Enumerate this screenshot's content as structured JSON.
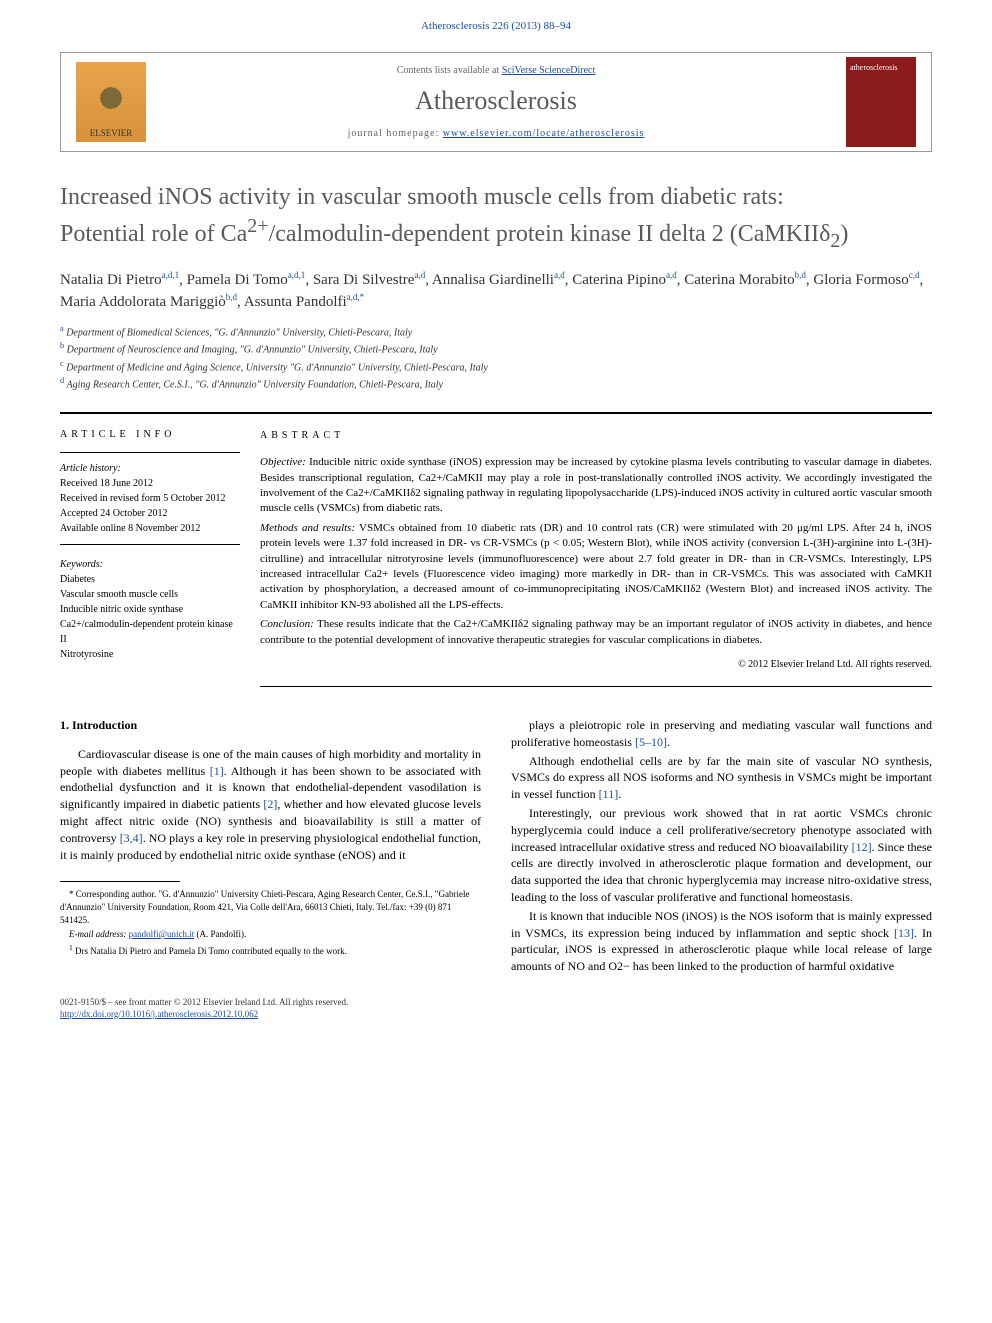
{
  "header": {
    "citation": "Atherosclerosis 226 (2013) 88–94"
  },
  "journal_box": {
    "contents_prefix": "Contents lists available at ",
    "contents_link": "SciVerse ScienceDirect",
    "journal_name": "Atherosclerosis",
    "homepage_prefix": "journal homepage: ",
    "homepage_url": "www.elsevier.com/locate/atherosclerosis",
    "elsevier_label": "ELSEVIER",
    "cover_label": "atherosclerosis"
  },
  "title": {
    "line1": "Increased iNOS activity in vascular smooth muscle cells from diabetic rats:",
    "line2_prefix": "Potential role of Ca",
    "line2_sup1": "2+",
    "line2_mid": "/calmodulin-dependent protein kinase II delta 2 (CaMKIIδ",
    "line2_sub": "2",
    "line2_suffix": ")"
  },
  "authors": [
    {
      "name": "Natalia Di Pietro",
      "aff": "a,d,1"
    },
    {
      "name": "Pamela Di Tomo",
      "aff": "a,d,1"
    },
    {
      "name": "Sara Di Silvestre",
      "aff": "a,d"
    },
    {
      "name": "Annalisa Giardinelli",
      "aff": "a,d"
    },
    {
      "name": "Caterina Pipino",
      "aff": "a,d"
    },
    {
      "name": "Caterina Morabito",
      "aff": "b,d"
    },
    {
      "name": "Gloria Formoso",
      "aff": "c,d"
    },
    {
      "name": "Maria Addolorata Mariggiò",
      "aff": "b,d"
    },
    {
      "name": "Assunta Pandolfi",
      "aff": "a,d,*"
    }
  ],
  "affiliations": [
    {
      "sup": "a",
      "text": "Department of Biomedical Sciences, \"G. d'Annunzio\" University, Chieti-Pescara, Italy"
    },
    {
      "sup": "b",
      "text": "Department of Neuroscience and Imaging, \"G. d'Annunzio\" University, Chieti-Pescara, Italy"
    },
    {
      "sup": "c",
      "text": "Department of Medicine and Aging Science, University \"G. d'Annunzio\" University, Chieti-Pescara, Italy"
    },
    {
      "sup": "d",
      "text": "Aging Research Center, Ce.S.I., \"G. d'Annunzio\" University Foundation, Chieti-Pescara, Italy"
    }
  ],
  "article_info": {
    "heading": "ARTICLE INFO",
    "history_label": "Article history:",
    "received": "Received 18 June 2012",
    "revised": "Received in revised form 5 October 2012",
    "accepted": "Accepted 24 October 2012",
    "online": "Available online 8 November 2012",
    "keywords_label": "Keywords:",
    "keywords": [
      "Diabetes",
      "Vascular smooth muscle cells",
      "Inducible nitric oxide synthase",
      "Ca2+/calmodulin-dependent protein kinase II",
      "Nitrotyrosine"
    ]
  },
  "abstract": {
    "heading": "ABSTRACT",
    "objective_label": "Objective:",
    "objective": "Inducible nitric oxide synthase (iNOS) expression may be increased by cytokine plasma levels contributing to vascular damage in diabetes. Besides transcriptional regulation, Ca2+/CaMKII may play a role in post-translationally controlled iNOS activity. We accordingly investigated the involvement of the Ca2+/CaMKIIδ2 signaling pathway in regulating lipopolysaccharide (LPS)-induced iNOS activity in cultured aortic vascular smooth muscle cells (VSMCs) from diabetic rats.",
    "methods_label": "Methods and results:",
    "methods": "VSMCs obtained from 10 diabetic rats (DR) and 10 control rats (CR) were stimulated with 20 μg/ml LPS. After 24 h, iNOS protein levels were 1.37 fold increased in DR- vs CR-VSMCs (p < 0.05; Western Blot), while iNOS activity (conversion L-(3H)-arginine into L-(3H)-citrulline) and intracellular nitrotyrosine levels (immunofluorescence) were about 2.7 fold greater in DR- than in CR-VSMCs. Interestingly, LPS increased intracellular Ca2+ levels (Fluorescence video imaging) more markedly in DR- than in CR-VSMCs. This was associated with CaMKII activation by phosphorylation, a decreased amount of co-immunoprecipitating iNOS/CaMKIIδ2 (Western Blot) and increased iNOS activity. The CaMKII inhibitor KN-93 abolished all the LPS-effects.",
    "conclusion_label": "Conclusion:",
    "conclusion": "These results indicate that the Ca2+/CaMKIIδ2 signaling pathway may be an important regulator of iNOS activity in diabetes, and hence contribute to the potential development of innovative therapeutic strategies for vascular complications in diabetes.",
    "copyright": "© 2012 Elsevier Ireland Ltd. All rights reserved."
  },
  "body": {
    "section_heading": "1. Introduction",
    "left_paras": [
      "Cardiovascular disease is one of the main causes of high morbidity and mortality in people with diabetes mellitus [1]. Although it has been shown to be associated with endothelial dysfunction and it is known that endothelial-dependent vasodilation is significantly impaired in diabetic patients [2], whether and how elevated glucose levels might affect nitric oxide (NO) synthesis and bioavailability is still a matter of controversy [3,4]. NO plays a key role in preserving physiological endothelial function, it is mainly produced by endothelial nitric oxide synthase (eNOS) and it"
    ],
    "right_paras": [
      "plays a pleiotropic role in preserving and mediating vascular wall functions and proliferative homeostasis [5–10].",
      "Although endothelial cells are by far the main site of vascular NO synthesis, VSMCs do express all NOS isoforms and NO synthesis in VSMCs might be important in vessel function [11].",
      "Interestingly, our previous work showed that in rat aortic VSMCs chronic hyperglycemia could induce a cell proliferative/secretory phenotype associated with increased intracellular oxidative stress and reduced NO bioavailability [12]. Since these cells are directly involved in atherosclerotic plaque formation and development, our data supported the idea that chronic hyperglycemia may increase nitro-oxidative stress, leading to the loss of vascular proliferative and functional homeostasis.",
      "It is known that inducible NOS (iNOS) is the NOS isoform that is mainly expressed in VSMCs, its expression being induced by inflammation and septic shock [13]. In particular, iNOS is expressed in atherosclerotic plaque while local release of large amounts of NO and O2− has been linked to the production of harmful oxidative"
    ]
  },
  "footnotes": {
    "corr_marker": "*",
    "corr_text": "Corresponding author. \"G. d'Annunzio\" University Chieti-Pescara, Aging Research Center, Ce.S.I., \"Gabriele d'Annunzio\" University Foundation, Room 421, Via Colle dell'Ara, 66013 Chieti, Italy. Tel./fax: +39 (0) 871 541425.",
    "email_label": "E-mail address:",
    "email": "pandolfi@unich.it",
    "email_attrib": "(A. Pandolfi).",
    "equal_marker": "1",
    "equal_text": "Drs Natalia Di Pietro and Pamela Di Tomo contributed equally to the work."
  },
  "footer": {
    "issn": "0021-9150/$ – see front matter © 2012 Elsevier Ireland Ltd. All rights reserved.",
    "doi": "http://dx.doi.org/10.1016/j.atherosclerosis.2012.10.062"
  },
  "colors": {
    "link": "#1a4d99",
    "title_gray": "#5a5a5a",
    "cover_bg": "#8b1a1a"
  }
}
